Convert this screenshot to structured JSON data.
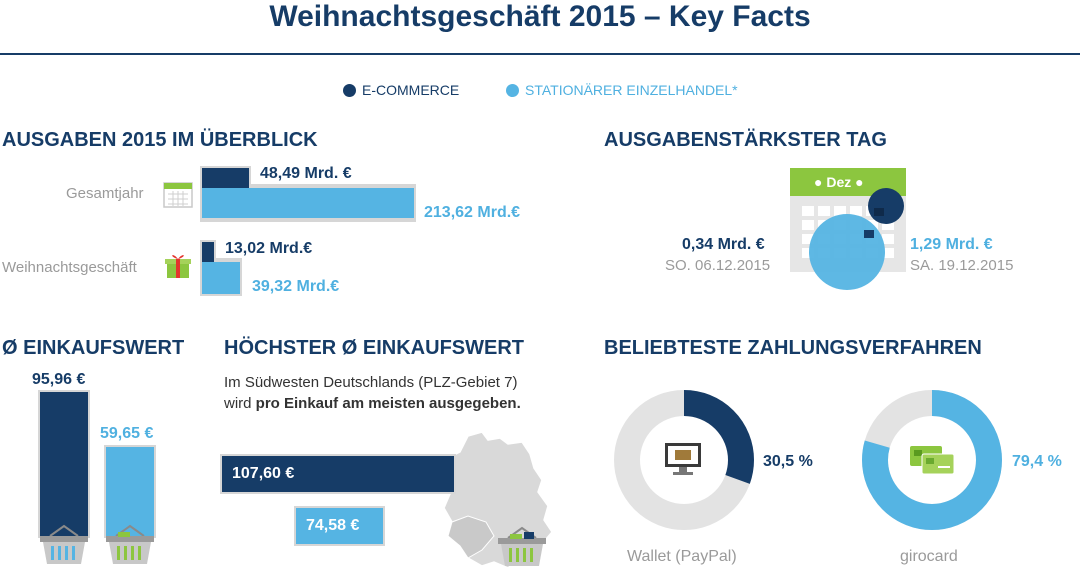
{
  "title": "Weihnachtsgeschäft 2015 – Key Facts",
  "legend": [
    {
      "label": "E-COMMERCE",
      "color": "#163c67"
    },
    {
      "label": "STATIONÄRER EINZELHANDEL*",
      "color": "#55b4e3"
    }
  ],
  "ausgaben": {
    "heading": "AUSGABEN 2015 IM ÜBERBLICK",
    "rows": [
      {
        "label": "Gesamtjahr",
        "icon": "calendar-icon",
        "ecommerce": "48,49 Mrd. €",
        "stationaer": "213,62 Mrd.€"
      },
      {
        "label": "Weihnachtsgeschäft",
        "icon": "gift-icon",
        "ecommerce": "13,02 Mrd.€",
        "stationaer": "39,32 Mrd.€"
      }
    ]
  },
  "tag": {
    "heading": "AUSGABENSTÄRKSTER TAG",
    "calendar_label": "Dez",
    "left_value": "0,34 Mrd. €",
    "left_date": "SO. 06.12.2015",
    "right_value": "1,29 Mrd. €",
    "right_date": "SA. 19.12.2015"
  },
  "einkaufswert": {
    "heading": "Ø EINKAUFSWERT",
    "ecommerce": "95,96 €",
    "stationaer": "59,65 €"
  },
  "hoechster": {
    "heading": "HÖCHSTER Ø EINKAUFSWERT",
    "text1": "Im Südwesten Deutschlands (PLZ-Gebiet 7)",
    "text2_pre": "wird ",
    "text2_bold": "pro Einkauf am meisten ausgegeben.",
    "ecommerce": "107,60 €",
    "stationaer": "74,58 €"
  },
  "zahlung": {
    "heading": "BELIEBTESTE ZAHLUNGSVERFAHREN",
    "wallet_pct": "30,5 %",
    "wallet_label": "Wallet (PayPal)",
    "girocard_pct": "79,4 %",
    "girocard_label": "girocard"
  },
  "chart_data": [
    {
      "type": "bar",
      "title": "AUSGABEN 2015 IM ÜBERBLICK",
      "categories": [
        "Gesamtjahr",
        "Weihnachtsgeschäft"
      ],
      "series": [
        {
          "name": "E-COMMERCE",
          "values": [
            48.49,
            13.02
          ]
        },
        {
          "name": "STATIONÄRER EINZELHANDEL*",
          "values": [
            213.62,
            39.32
          ]
        }
      ]
    },
    {
      "type": "bar",
      "title": "Ø EINKAUFSWERT",
      "categories": [
        "E-COMMERCE",
        "STATIONÄRER EINZELHANDEL*"
      ],
      "values": [
        95.96,
        59.65
      ]
    },
    {
      "type": "bar",
      "title": "HÖCHSTER Ø EINKAUFSWERT",
      "categories": [
        "E-COMMERCE",
        "STATIONÄRER EINZELHANDEL*"
      ],
      "values": [
        107.6,
        74.58
      ]
    },
    {
      "type": "pie",
      "title": "BELIEBTESTE ZAHLUNGSVERFAHREN",
      "categories": [
        "Wallet (PayPal)",
        "girocard"
      ],
      "values": [
        30.5,
        79.4
      ]
    }
  ]
}
